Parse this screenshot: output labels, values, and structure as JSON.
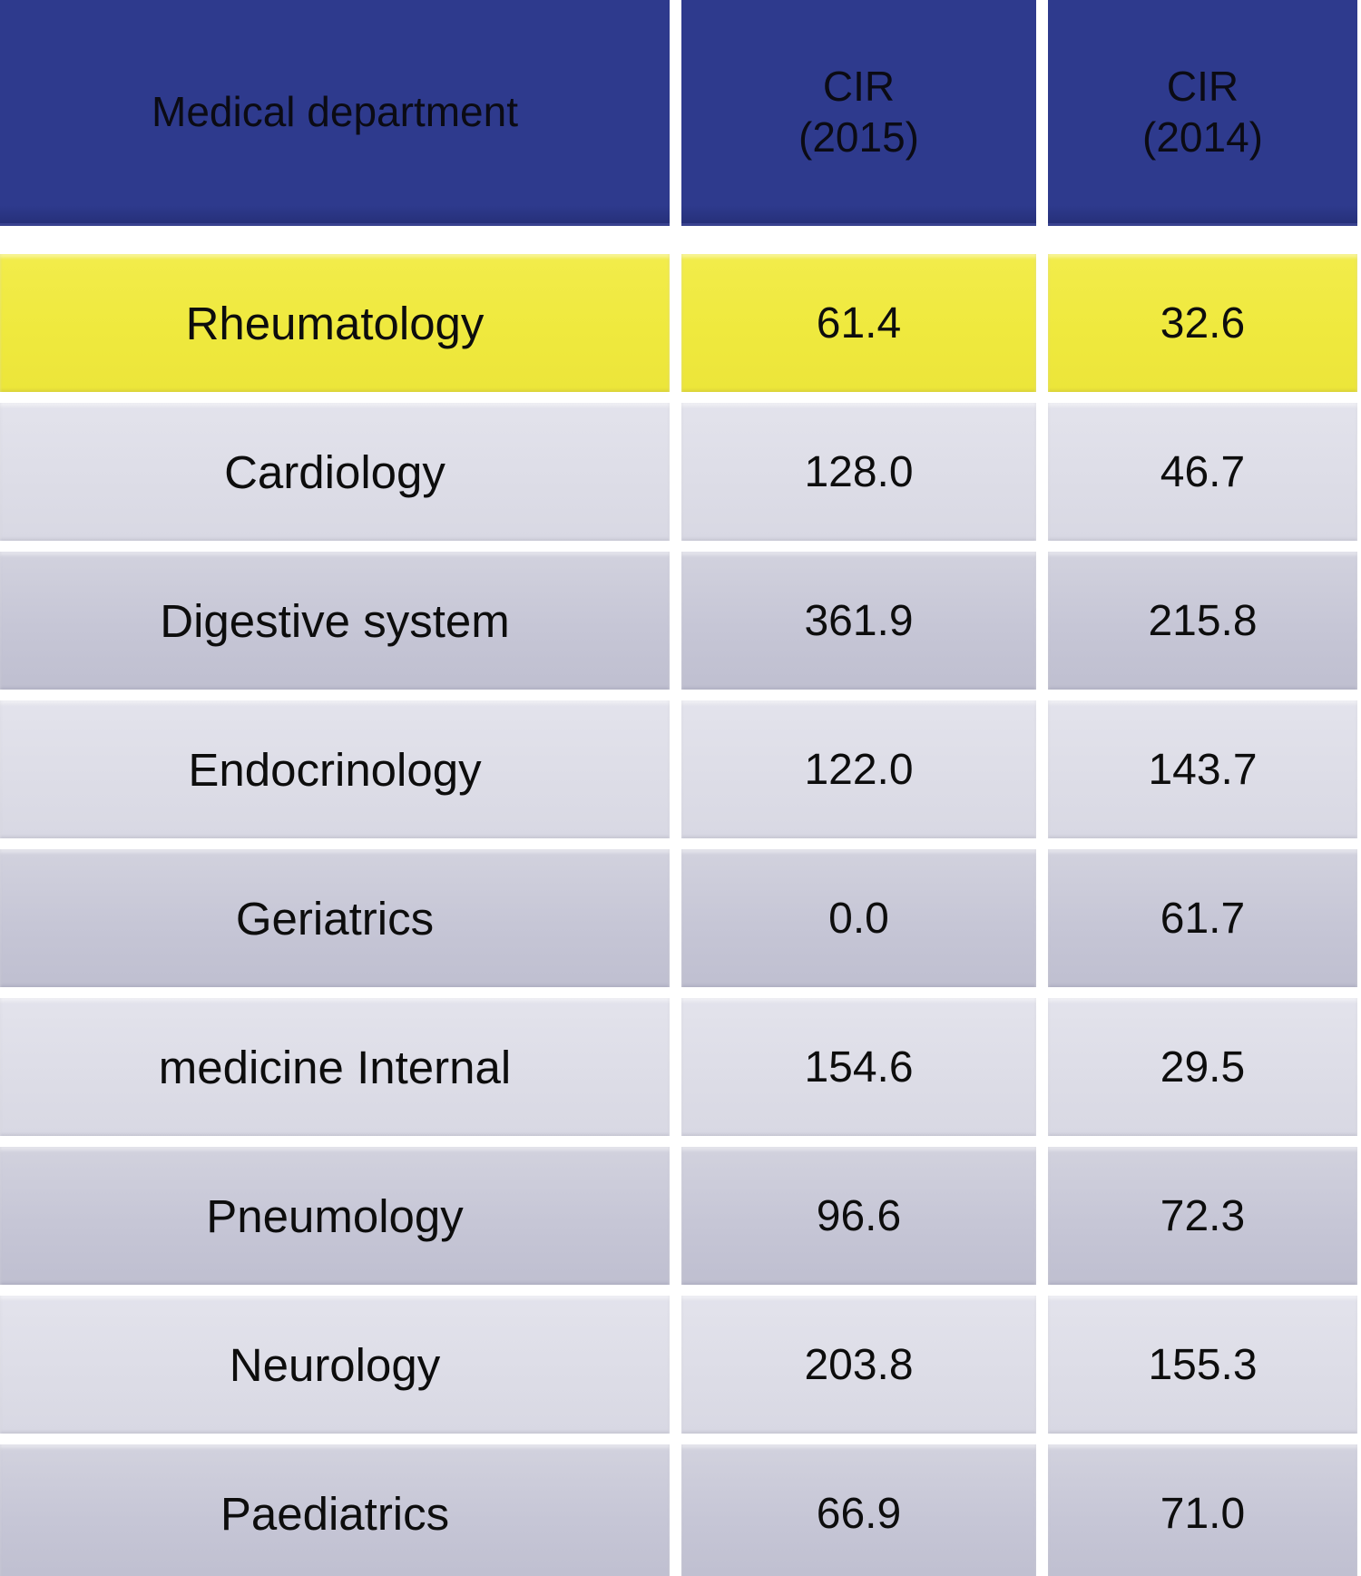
{
  "colors": {
    "header_blue": "#2e3a8d",
    "highlight_yellow": "#efe93e",
    "row_light": "#dddde7",
    "row_dark": "#c6c6d6",
    "gap_white": "#ffffff",
    "text": "#0d0d0d"
  },
  "table": {
    "header": {
      "department": "Medical department",
      "cir2015_line1": "CIR",
      "cir2015_line2": "(2015)",
      "cir2014_line1": "CIR",
      "cir2014_line2": "(2014)"
    },
    "rows": [
      {
        "department": "Rheumatology",
        "cir_2015": "61.4",
        "cir_2014": "32.6",
        "highlighted": true
      },
      {
        "department": "Cardiology",
        "cir_2015": "128.0",
        "cir_2014": "46.7",
        "highlighted": false
      },
      {
        "department": "Digestive system",
        "cir_2015": "361.9",
        "cir_2014": "215.8",
        "highlighted": false
      },
      {
        "department": "Endocrinology",
        "cir_2015": "122.0",
        "cir_2014": "143.7",
        "highlighted": false
      },
      {
        "department": "Geriatrics",
        "cir_2015": "0.0",
        "cir_2014": "61.7",
        "highlighted": false
      },
      {
        "department": "medicine Internal",
        "cir_2015": "154.6",
        "cir_2014": "29.5",
        "highlighted": false
      },
      {
        "department": "Pneumology",
        "cir_2015": "96.6",
        "cir_2014": "72.3",
        "highlighted": false
      },
      {
        "department": "Neurology",
        "cir_2015": "203.8",
        "cir_2014": "155.3",
        "highlighted": false
      },
      {
        "department": "Paediatrics",
        "cir_2015": "66.9",
        "cir_2014": "71.0",
        "highlighted": false
      }
    ]
  },
  "chart_data": {
    "type": "table",
    "columns": [
      "Medical department",
      "CIR (2015)",
      "CIR (2014)"
    ],
    "rows": [
      [
        "Rheumatology",
        61.4,
        32.6
      ],
      [
        "Cardiology",
        128.0,
        46.7
      ],
      [
        "Digestive system",
        361.9,
        215.8
      ],
      [
        "Endocrinology",
        122.0,
        143.7
      ],
      [
        "Geriatrics",
        0.0,
        61.7
      ],
      [
        "medicine Internal",
        154.6,
        29.5
      ],
      [
        "Pneumology",
        96.6,
        72.3
      ],
      [
        "Neurology",
        203.8,
        155.3
      ],
      [
        "Paediatrics",
        66.9,
        71.0
      ]
    ],
    "highlighted_row": "Rheumatology",
    "layout_hints": {
      "header_style": "navy background, black text",
      "highlight_style": "yellow row",
      "body_style": "alternating light/dark lavender-gray rows separated by white gaps"
    }
  }
}
